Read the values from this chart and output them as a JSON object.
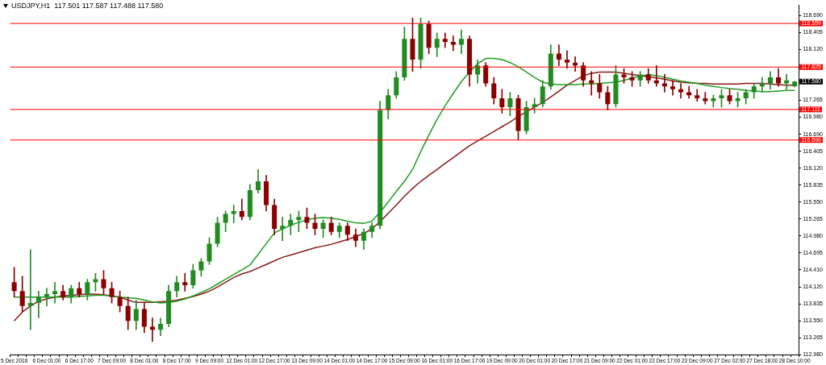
{
  "chart_data": {
    "type": "candlestick",
    "title": "USDJPY,H1  117.501 117.587 117.488 117.580",
    "categories": [
      "5 Dec 2016",
      null,
      null,
      null,
      "6 Dec 01:00",
      null,
      null,
      null,
      "6 Dec 17:00",
      null,
      null,
      null,
      "7 Dec 09:00",
      null,
      null,
      null,
      "8 Dec 01:00",
      null,
      null,
      null,
      "8 Dec 17:00",
      null,
      null,
      null,
      "9 Dec 09:00",
      null,
      null,
      null,
      "12 Dec 01:00",
      null,
      null,
      null,
      "12 Dec 17:00",
      null,
      null,
      null,
      "13 Dec 09:00",
      null,
      null,
      null,
      "14 Dec 01:00",
      null,
      null,
      null,
      "14 Dec 17:00",
      null,
      null,
      null,
      "15 Dec 09:00",
      null,
      null,
      null,
      "16 Dec 01:00",
      null,
      null,
      null,
      "16 Dec 17:00",
      null,
      null,
      null,
      "19 Dec 09:00",
      null,
      null,
      null,
      "20 Dec 01:00",
      null,
      null,
      null,
      "20 Dec 17:00",
      null,
      null,
      null,
      "21 Dec 09:00",
      null,
      null,
      null,
      "22 Dec 01:00",
      null,
      null,
      null,
      "22 Dec 17:00",
      null,
      null,
      null,
      "23 Dec 09:00",
      null,
      null,
      null,
      "27 Dec 02:00",
      null,
      null,
      null,
      "27 Dec 18:00",
      null,
      null,
      null,
      "28 Dec 10:00"
    ],
    "ohlc": [
      [
        114.2,
        114.45,
        113.95,
        114.05
      ],
      [
        114.05,
        114.3,
        113.7,
        113.8
      ],
      [
        113.8,
        114.75,
        113.4,
        113.85
      ],
      [
        113.85,
        114.05,
        113.6,
        113.95
      ],
      [
        113.95,
        114.1,
        113.8,
        114.0
      ],
      [
        114.0,
        114.2,
        113.85,
        114.05
      ],
      [
        114.05,
        114.15,
        113.9,
        113.95
      ],
      [
        113.95,
        114.15,
        113.85,
        114.1
      ],
      [
        114.1,
        114.2,
        113.95,
        114.0
      ],
      [
        114.0,
        114.25,
        113.9,
        114.2
      ],
      [
        114.2,
        114.35,
        114.05,
        114.25
      ],
      [
        114.25,
        114.4,
        114.0,
        114.1
      ],
      [
        114.1,
        114.2,
        113.85,
        113.95
      ],
      [
        113.95,
        114.05,
        113.7,
        113.8
      ],
      [
        113.8,
        113.95,
        113.4,
        113.55
      ],
      [
        113.55,
        113.9,
        113.4,
        113.75
      ],
      [
        113.75,
        113.85,
        113.35,
        113.45
      ],
      [
        113.45,
        113.6,
        113.2,
        113.4
      ],
      [
        113.4,
        113.6,
        113.3,
        113.5
      ],
      [
        113.5,
        114.15,
        113.45,
        114.05
      ],
      [
        114.05,
        114.3,
        113.95,
        114.2
      ],
      [
        114.2,
        114.35,
        114.05,
        114.15
      ],
      [
        114.15,
        114.5,
        114.1,
        114.4
      ],
      [
        114.4,
        114.6,
        114.3,
        114.55
      ],
      [
        114.55,
        114.95,
        114.5,
        114.85
      ],
      [
        114.85,
        115.3,
        114.8,
        115.2
      ],
      [
        115.2,
        115.4,
        115.05,
        115.35
      ],
      [
        115.35,
        115.5,
        115.2,
        115.4
      ],
      [
        115.4,
        115.6,
        115.25,
        115.3
      ],
      [
        115.3,
        115.85,
        115.25,
        115.75
      ],
      [
        115.75,
        116.1,
        115.7,
        115.9
      ],
      [
        115.9,
        116.0,
        115.4,
        115.5
      ],
      [
        115.5,
        115.6,
        115.0,
        115.1
      ],
      [
        115.1,
        115.3,
        114.9,
        115.15
      ],
      [
        115.15,
        115.35,
        115.0,
        115.25
      ],
      [
        115.25,
        115.4,
        115.05,
        115.3
      ],
      [
        115.3,
        115.45,
        115.1,
        115.2
      ],
      [
        115.2,
        115.35,
        115.0,
        115.1
      ],
      [
        115.1,
        115.25,
        114.95,
        115.2
      ],
      [
        115.2,
        115.3,
        115.0,
        115.05
      ],
      [
        115.05,
        115.2,
        114.95,
        115.15
      ],
      [
        115.15,
        115.2,
        114.9,
        115.0
      ],
      [
        115.0,
        115.1,
        114.8,
        114.9
      ],
      [
        114.9,
        115.1,
        114.75,
        115.05
      ],
      [
        115.05,
        115.2,
        114.95,
        115.15
      ],
      [
        115.15,
        117.25,
        115.1,
        117.1
      ],
      [
        117.1,
        117.45,
        116.95,
        117.35
      ],
      [
        117.35,
        117.75,
        117.3,
        117.65
      ],
      [
        117.65,
        118.5,
        117.6,
        118.3
      ],
      [
        118.3,
        118.65,
        117.75,
        117.95
      ],
      [
        117.95,
        118.65,
        117.8,
        118.55
      ],
      [
        118.55,
        118.6,
        118.05,
        118.15
      ],
      [
        118.15,
        118.4,
        118.0,
        118.3
      ],
      [
        118.3,
        118.4,
        118.15,
        118.25
      ],
      [
        118.25,
        118.35,
        118.1,
        118.2
      ],
      [
        118.2,
        118.45,
        118.05,
        118.3
      ],
      [
        118.3,
        118.35,
        117.5,
        117.7
      ],
      [
        117.7,
        117.95,
        117.55,
        117.85
      ],
      [
        117.85,
        117.9,
        117.5,
        117.55
      ],
      [
        117.55,
        117.65,
        117.2,
        117.3
      ],
      [
        117.3,
        117.45,
        117.05,
        117.15
      ],
      [
        117.15,
        117.4,
        117.0,
        117.3
      ],
      [
        117.3,
        117.35,
        116.6,
        116.75
      ],
      [
        116.75,
        117.25,
        116.7,
        117.15
      ],
      [
        117.15,
        117.3,
        117.05,
        117.2
      ],
      [
        117.2,
        117.6,
        117.15,
        117.5
      ],
      [
        117.5,
        118.2,
        117.45,
        118.05
      ],
      [
        118.05,
        118.2,
        117.85,
        117.95
      ],
      [
        117.95,
        118.1,
        117.8,
        117.9
      ],
      [
        117.9,
        118.0,
        117.75,
        117.85
      ],
      [
        117.85,
        117.9,
        117.5,
        117.6
      ],
      [
        117.6,
        117.75,
        117.35,
        117.55
      ],
      [
        117.55,
        117.7,
        117.3,
        117.4
      ],
      [
        117.4,
        117.5,
        117.1,
        117.2
      ],
      [
        117.2,
        117.85,
        117.15,
        117.7
      ],
      [
        117.7,
        117.8,
        117.55,
        117.65
      ],
      [
        117.65,
        117.75,
        117.5,
        117.6
      ],
      [
        117.6,
        117.75,
        117.5,
        117.7
      ],
      [
        117.7,
        117.8,
        117.55,
        117.6
      ],
      [
        117.6,
        117.85,
        117.5,
        117.55
      ],
      [
        117.55,
        117.7,
        117.4,
        117.5
      ],
      [
        117.5,
        117.6,
        117.35,
        117.45
      ],
      [
        117.45,
        117.55,
        117.3,
        117.4
      ],
      [
        117.4,
        117.5,
        117.3,
        117.35
      ],
      [
        117.35,
        117.45,
        117.25,
        117.3
      ],
      [
        117.3,
        117.4,
        117.2,
        117.25
      ],
      [
        117.25,
        117.35,
        117.15,
        117.3
      ],
      [
        117.3,
        117.45,
        117.15,
        117.35
      ],
      [
        117.35,
        117.45,
        117.2,
        117.25
      ],
      [
        117.25,
        117.4,
        117.15,
        117.3
      ],
      [
        117.3,
        117.45,
        117.2,
        117.4
      ],
      [
        117.4,
        117.55,
        117.3,
        117.5
      ],
      [
        117.5,
        117.65,
        117.4,
        117.55
      ],
      [
        117.55,
        117.75,
        117.45,
        117.65
      ],
      [
        117.65,
        117.8,
        117.5,
        117.55
      ],
      [
        117.55,
        117.7,
        117.45,
        117.6
      ],
      [
        117.501,
        117.587,
        117.488,
        117.58
      ]
    ],
    "colors": [
      "#8b0000",
      "#8b0000",
      "#228b22",
      "#228b22",
      "#228b22",
      "#228b22",
      "#8b0000",
      "#228b22",
      "#8b0000",
      "#228b22",
      "#228b22",
      "#8b0000",
      "#8b0000",
      "#8b0000",
      "#8b0000",
      "#228b22",
      "#8b0000",
      "#8b0000",
      "#228b22",
      "#228b22",
      "#228b22",
      "#8b0000",
      "#228b22",
      "#228b22",
      "#228b22",
      "#228b22",
      "#228b22",
      "#228b22",
      "#8b0000",
      "#228b22",
      "#228b22",
      "#8b0000",
      "#8b0000",
      "#228b22",
      "#228b22",
      "#228b22",
      "#8b0000",
      "#8b0000",
      "#228b22",
      "#8b0000",
      "#228b22",
      "#8b0000",
      "#8b0000",
      "#228b22",
      "#228b22",
      "#228b22",
      "#228b22",
      "#228b22",
      "#228b22",
      "#8b0000",
      "#228b22",
      "#8b0000",
      "#228b22",
      "#8b0000",
      "#8b0000",
      "#228b22",
      "#8b0000",
      "#228b22",
      "#8b0000",
      "#8b0000",
      "#8b0000",
      "#228b22",
      "#8b0000",
      "#228b22",
      "#228b22",
      "#228b22",
      "#228b22",
      "#8b0000",
      "#8b0000",
      "#8b0000",
      "#8b0000",
      "#8b0000",
      "#8b0000",
      "#8b0000",
      "#228b22",
      "#8b0000",
      "#8b0000",
      "#228b22",
      "#8b0000",
      "#8b0000",
      "#8b0000",
      "#8b0000",
      "#8b0000",
      "#8b0000",
      "#8b0000",
      "#8b0000",
      "#228b22",
      "#228b22",
      "#8b0000",
      "#228b22",
      "#228b22",
      "#228b22",
      "#228b22",
      "#228b22",
      "#8b0000",
      "#228b22",
      "#228b22"
    ],
    "series": [
      {
        "type": "line",
        "color": "#1e9e1e",
        "values": [
          113.95,
          113.95,
          113.95,
          113.95,
          113.95,
          113.95,
          113.95,
          113.95,
          113.96,
          113.97,
          113.98,
          113.98,
          113.97,
          113.95,
          113.94,
          113.93,
          113.9,
          113.87,
          113.85,
          113.86,
          113.88,
          113.92,
          113.97,
          114.03,
          114.09,
          114.17,
          114.25,
          114.33,
          114.41,
          114.49,
          114.67,
          114.85,
          115.03,
          115.1,
          115.16,
          115.21,
          115.25,
          115.28,
          115.29,
          115.28,
          115.26,
          115.23,
          115.2,
          115.19,
          115.23,
          115.38,
          115.55,
          115.73,
          115.9,
          116.1,
          116.4,
          116.68,
          116.94,
          117.17,
          117.38,
          117.58,
          117.74,
          117.88,
          117.97,
          117.97,
          117.95,
          117.9,
          117.83,
          117.74,
          117.65,
          117.57,
          117.54,
          117.53,
          117.53,
          117.53,
          117.54,
          117.54,
          117.55,
          117.56,
          117.57,
          117.6,
          117.64,
          117.67,
          117.7,
          117.68,
          117.65,
          117.62,
          117.59,
          117.57,
          117.55,
          117.52,
          117.5,
          117.48,
          117.46,
          117.45,
          117.43,
          117.42,
          117.41,
          117.41,
          117.42,
          117.43,
          117.43
        ]
      },
      {
        "type": "line",
        "color": "#8b1a1a",
        "values": [
          113.55,
          113.7,
          113.8,
          113.88,
          113.92,
          113.95,
          113.97,
          113.98,
          113.99,
          114.0,
          114.0,
          113.99,
          113.97,
          113.95,
          113.9,
          113.86,
          113.86,
          113.86,
          113.87,
          113.88,
          113.9,
          113.93,
          113.96,
          114.0,
          114.05,
          114.12,
          114.2,
          114.28,
          114.34,
          114.38,
          114.44,
          114.5,
          114.56,
          114.62,
          114.66,
          114.7,
          114.74,
          114.78,
          114.81,
          114.84,
          114.88,
          114.92,
          114.97,
          115.02,
          115.1,
          115.22,
          115.36,
          115.5,
          115.65,
          115.78,
          115.9,
          116.0,
          116.1,
          116.2,
          116.3,
          116.4,
          116.5,
          116.58,
          116.66,
          116.74,
          116.82,
          116.9,
          116.99,
          117.07,
          117.15,
          117.23,
          117.32,
          117.42,
          117.52,
          117.6,
          117.68,
          117.72,
          117.74,
          117.74,
          117.74,
          117.72,
          117.7,
          117.68,
          117.66,
          117.64,
          117.62,
          117.59,
          117.57,
          117.56,
          117.55,
          117.55,
          117.54,
          117.54,
          117.54,
          117.54,
          117.55,
          117.55,
          117.55,
          117.54,
          117.53,
          117.52,
          117.52
        ]
      }
    ],
    "ylim": [
      112.98,
      118.87
    ],
    "yticks": [
      {
        "value": 112.98,
        "label": "112.980"
      },
      {
        "value": 113.265,
        "label": "113.265"
      },
      {
        "value": 113.55,
        "label": "113.550"
      },
      {
        "value": 113.835,
        "label": "113.835"
      },
      {
        "value": 114.12,
        "label": "114.120"
      },
      {
        "value": 114.41,
        "label": "114.410"
      },
      {
        "value": 114.695,
        "label": "114.695"
      },
      {
        "value": 114.98,
        "label": "114.980"
      },
      {
        "value": 115.265,
        "label": "115.265"
      },
      {
        "value": 115.55,
        "label": "115.550"
      },
      {
        "value": 115.835,
        "label": "115.835"
      },
      {
        "value": 116.12,
        "label": "116.120"
      },
      {
        "value": 116.405,
        "label": "116.405"
      },
      {
        "value": 116.69,
        "label": "116.690"
      },
      {
        "value": 116.98,
        "label": "116.980"
      },
      {
        "value": 117.265,
        "label": "117.265"
      },
      {
        "value": 118.12,
        "label": "118.120"
      },
      {
        "value": 118.405,
        "label": "118.405"
      },
      {
        "value": 118.69,
        "label": "118.690"
      }
    ],
    "ref_lines": [
      {
        "axis": "y",
        "value": 118.559,
        "label": "118.559",
        "color": "#ff0000"
      },
      {
        "axis": "y",
        "value": 117.825,
        "label": "117.825",
        "color": "#ff0000"
      },
      {
        "axis": "y",
        "value": 117.111,
        "label": "117.111",
        "color": "#ff0000"
      },
      {
        "axis": "y",
        "value": 116.596,
        "label": "116.596",
        "color": "#ff0000"
      }
    ],
    "annotations": [
      "117.580"
    ],
    "grid": false,
    "legend": false,
    "marker": "none",
    "line_style": "solid"
  }
}
